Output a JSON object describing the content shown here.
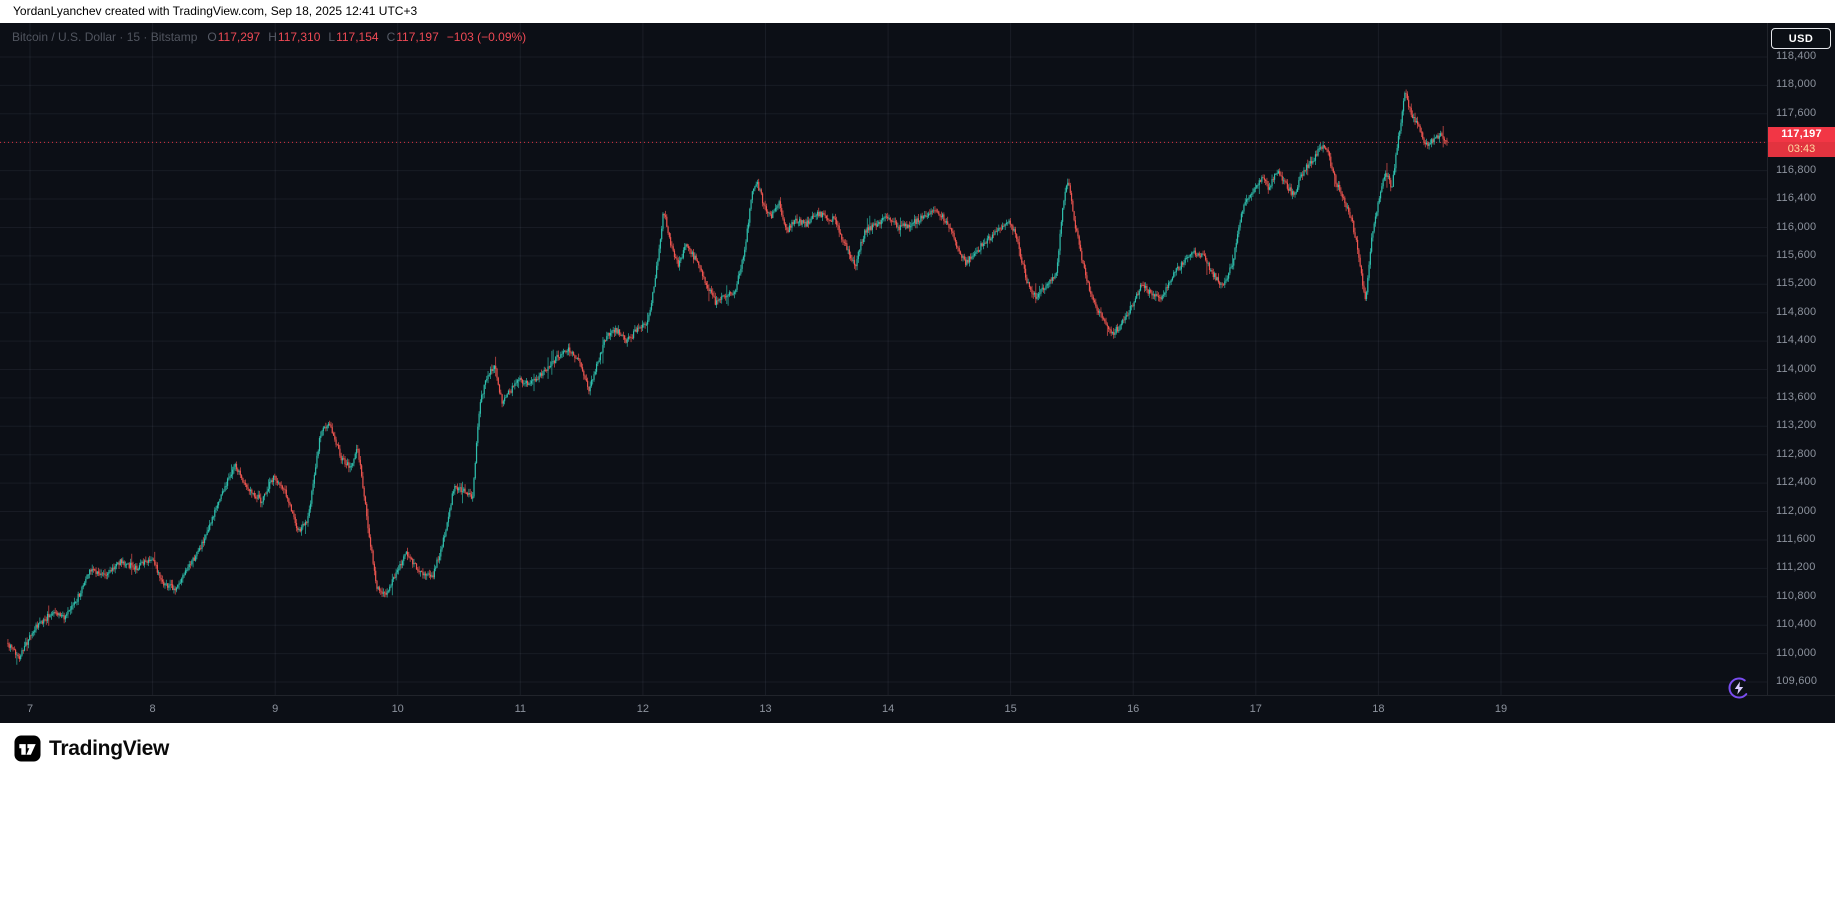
{
  "attribution": {
    "text": "YordanLyanchev created with TradingView.com, Sep 18, 2025 12:41 UTC+3"
  },
  "legend": {
    "title": "Bitcoin / U.S. Dollar · 15 · Bitstamp",
    "symbol": "Bitcoin / U.S. Dollar",
    "interval": "15",
    "exchange": "Bitstamp",
    "ohlc": {
      "o_label": "O",
      "o": "117,297",
      "h_label": "H",
      "h": "117,310",
      "l_label": "L",
      "l": "117,154",
      "c_label": "C",
      "c": "117,197",
      "change": "−103 (−0.09%)"
    }
  },
  "price_scale": {
    "currency_button": "USD",
    "badge": {
      "price": "117,197",
      "countdown": "03:43"
    }
  },
  "time_axis": {
    "labels": [
      "7",
      "8",
      "9",
      "10",
      "11",
      "12",
      "13",
      "14",
      "15",
      "16",
      "17",
      "18",
      "19"
    ]
  },
  "footer": {
    "brand": "TradingView"
  },
  "colors": {
    "background": "#0c0f16",
    "up": "#2fbfad",
    "down": "#f05650",
    "accent_red": "#f23645",
    "axis_text": "#8d939e",
    "legend_text": "#565b66",
    "flash_purple": "#7a4df0"
  },
  "chart_data": {
    "type": "candlestick",
    "title": "Bitcoin / U.S. Dollar · 15 · Bitstamp",
    "symbol": "BTCUSD",
    "exchange": "Bitstamp",
    "interval_minutes": 15,
    "currency": "USD",
    "ylim": [
      109600,
      118400
    ],
    "y_tick_step": 400,
    "x_tick_days": [
      7,
      8,
      9,
      10,
      11,
      12,
      13,
      14,
      15,
      16,
      17,
      18,
      19
    ],
    "grid": true,
    "last_price": 117197,
    "countdown": "03:43",
    "current_ohlc": {
      "open": 117297,
      "high": 117310,
      "low": 117154,
      "close": 117197,
      "change": -103,
      "change_pct": -0.09
    },
    "price_path": [
      [
        6.82,
        110150
      ],
      [
        6.92,
        109950
      ],
      [
        7.05,
        110350
      ],
      [
        7.2,
        110600
      ],
      [
        7.3,
        110500
      ],
      [
        7.42,
        110850
      ],
      [
        7.5,
        111200
      ],
      [
        7.62,
        111100
      ],
      [
        7.75,
        111300
      ],
      [
        7.88,
        111200
      ],
      [
        8.0,
        111350
      ],
      [
        8.1,
        111000
      ],
      [
        8.2,
        110900
      ],
      [
        8.32,
        111250
      ],
      [
        8.45,
        111650
      ],
      [
        8.55,
        112150
      ],
      [
        8.68,
        112650
      ],
      [
        8.78,
        112350
      ],
      [
        8.9,
        112150
      ],
      [
        9.0,
        112500
      ],
      [
        9.1,
        112250
      ],
      [
        9.2,
        111700
      ],
      [
        9.28,
        111900
      ],
      [
        9.38,
        113100
      ],
      [
        9.45,
        113250
      ],
      [
        9.55,
        112750
      ],
      [
        9.63,
        112600
      ],
      [
        9.68,
        112950
      ],
      [
        9.76,
        111900
      ],
      [
        9.84,
        110900
      ],
      [
        9.92,
        110850
      ],
      [
        10.0,
        111150
      ],
      [
        10.08,
        111400
      ],
      [
        10.2,
        111150
      ],
      [
        10.3,
        111100
      ],
      [
        10.4,
        111700
      ],
      [
        10.47,
        112350
      ],
      [
        10.55,
        112300
      ],
      [
        10.62,
        112200
      ],
      [
        10.68,
        113550
      ],
      [
        10.75,
        113950
      ],
      [
        10.8,
        114050
      ],
      [
        10.86,
        113550
      ],
      [
        10.93,
        113700
      ],
      [
        11.0,
        113850
      ],
      [
        11.1,
        113800
      ],
      [
        11.2,
        113950
      ],
      [
        11.3,
        114150
      ],
      [
        11.4,
        114300
      ],
      [
        11.5,
        114100
      ],
      [
        11.57,
        113700
      ],
      [
        11.65,
        114150
      ],
      [
        11.72,
        114500
      ],
      [
        11.8,
        114550
      ],
      [
        11.88,
        114400
      ],
      [
        11.96,
        114550
      ],
      [
        12.05,
        114650
      ],
      [
        12.12,
        115400
      ],
      [
        12.18,
        116250
      ],
      [
        12.24,
        115750
      ],
      [
        12.3,
        115450
      ],
      [
        12.36,
        115750
      ],
      [
        12.44,
        115550
      ],
      [
        12.52,
        115250
      ],
      [
        12.6,
        114950
      ],
      [
        12.68,
        115050
      ],
      [
        12.76,
        115100
      ],
      [
        12.84,
        115650
      ],
      [
        12.9,
        116500
      ],
      [
        12.94,
        116650
      ],
      [
        13.0,
        116300
      ],
      [
        13.06,
        116150
      ],
      [
        13.12,
        116350
      ],
      [
        13.18,
        115950
      ],
      [
        13.26,
        116100
      ],
      [
        13.34,
        116050
      ],
      [
        13.42,
        116200
      ],
      [
        13.5,
        116150
      ],
      [
        13.58,
        116100
      ],
      [
        13.66,
        115750
      ],
      [
        13.74,
        115450
      ],
      [
        13.82,
        115950
      ],
      [
        13.92,
        116050
      ],
      [
        14.0,
        116150
      ],
      [
        14.1,
        116000
      ],
      [
        14.2,
        116050
      ],
      [
        14.3,
        116150
      ],
      [
        14.4,
        116250
      ],
      [
        14.48,
        116100
      ],
      [
        14.56,
        115800
      ],
      [
        14.64,
        115500
      ],
      [
        14.72,
        115650
      ],
      [
        14.8,
        115800
      ],
      [
        14.9,
        115950
      ],
      [
        15.0,
        116100
      ],
      [
        15.06,
        115850
      ],
      [
        15.14,
        115250
      ],
      [
        15.22,
        115000
      ],
      [
        15.3,
        115200
      ],
      [
        15.38,
        115300
      ],
      [
        15.44,
        116350
      ],
      [
        15.48,
        116700
      ],
      [
        15.54,
        116000
      ],
      [
        15.6,
        115500
      ],
      [
        15.68,
        114950
      ],
      [
        15.76,
        114750
      ],
      [
        15.84,
        114500
      ],
      [
        15.92,
        114650
      ],
      [
        16.0,
        114900
      ],
      [
        16.08,
        115200
      ],
      [
        16.16,
        115050
      ],
      [
        16.24,
        115000
      ],
      [
        16.32,
        115300
      ],
      [
        16.42,
        115500
      ],
      [
        16.5,
        115650
      ],
      [
        16.58,
        115600
      ],
      [
        16.66,
        115350
      ],
      [
        16.74,
        115150
      ],
      [
        16.82,
        115500
      ],
      [
        16.9,
        116250
      ],
      [
        16.98,
        116500
      ],
      [
        17.06,
        116700
      ],
      [
        17.12,
        116550
      ],
      [
        17.18,
        116800
      ],
      [
        17.26,
        116600
      ],
      [
        17.32,
        116450
      ],
      [
        17.4,
        116800
      ],
      [
        17.48,
        116950
      ],
      [
        17.54,
        117150
      ],
      [
        17.6,
        117050
      ],
      [
        17.66,
        116650
      ],
      [
        17.74,
        116350
      ],
      [
        17.8,
        116050
      ],
      [
        17.84,
        115700
      ],
      [
        17.88,
        115250
      ],
      [
        17.905,
        114950
      ],
      [
        17.93,
        115400
      ],
      [
        17.96,
        115900
      ],
      [
        18.02,
        116450
      ],
      [
        18.07,
        116800
      ],
      [
        18.12,
        116550
      ],
      [
        18.18,
        117350
      ],
      [
        18.23,
        117900
      ],
      [
        18.28,
        117600
      ],
      [
        18.34,
        117400
      ],
      [
        18.4,
        117150
      ],
      [
        18.46,
        117250
      ],
      [
        18.52,
        117300
      ],
      [
        18.56,
        117197
      ]
    ]
  }
}
